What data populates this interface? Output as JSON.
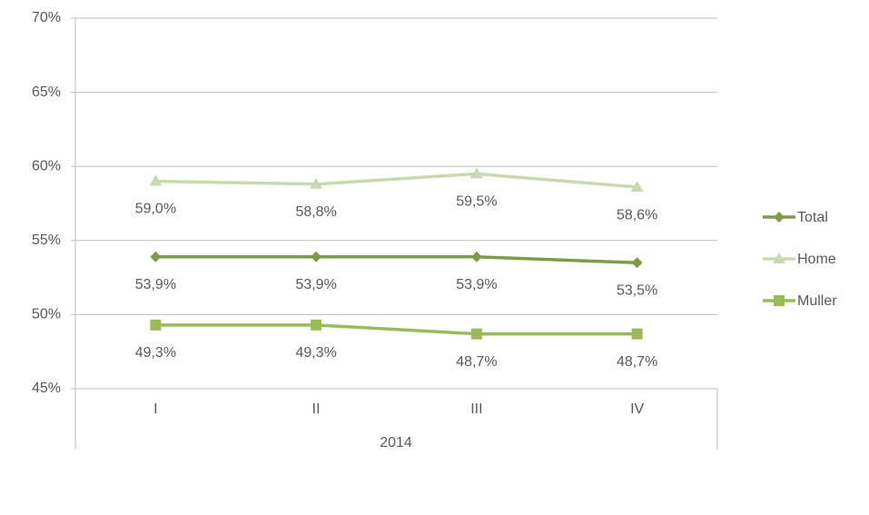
{
  "chart_data": {
    "type": "line",
    "categories": [
      "I",
      "II",
      "III",
      "IV"
    ],
    "category_group": "2014",
    "ylim": [
      45,
      70
    ],
    "yticks": [
      {
        "value": 45,
        "label": "45%"
      },
      {
        "value": 50,
        "label": "50%"
      },
      {
        "value": 55,
        "label": "55%"
      },
      {
        "value": 60,
        "label": "60%"
      },
      {
        "value": 65,
        "label": "65%"
      },
      {
        "value": 70,
        "label": "70%"
      }
    ],
    "grid": true,
    "legend": "right",
    "series": [
      {
        "name": "Total",
        "color": "#7f9a48",
        "marker": "diamond",
        "values": [
          53.9,
          53.9,
          53.9,
          53.5
        ],
        "value_labels": [
          "53,9%",
          "53,9%",
          "53,9%",
          "53,5%"
        ]
      },
      {
        "name": "Home",
        "color": "#c9d9b0",
        "marker": "triangle",
        "values": [
          59.0,
          58.8,
          59.5,
          58.6
        ],
        "value_labels": [
          "59,0%",
          "58,8%",
          "59,5%",
          "58,6%"
        ]
      },
      {
        "name": "Muller",
        "color": "#9bbb59",
        "marker": "square",
        "values": [
          49.3,
          49.3,
          48.7,
          48.7
        ],
        "value_labels": [
          "49,3%",
          "49,3%",
          "48,7%",
          "48,7%"
        ]
      }
    ]
  }
}
